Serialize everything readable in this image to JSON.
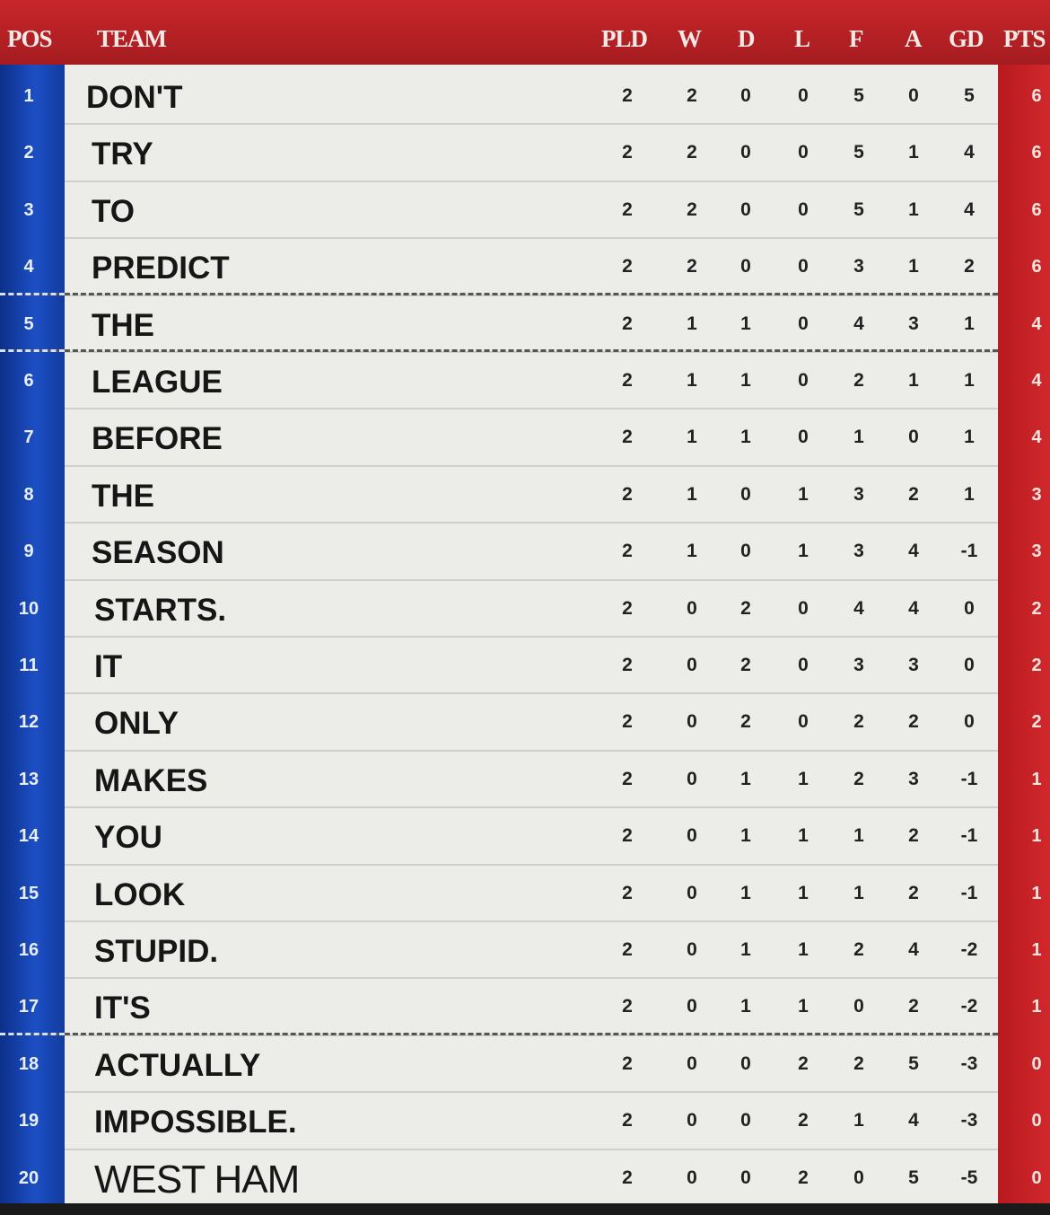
{
  "header": {
    "pos": "POS",
    "team": "TEAM",
    "pld": "PLD",
    "w": "W",
    "d": "D",
    "l": "L",
    "f": "F",
    "a": "A",
    "gd": "GD",
    "pts": "PTS"
  },
  "colors": {
    "header_red": "#c8262a",
    "pos_blue": "#1c4fc4",
    "pts_red": "#c8262a",
    "body": "#ecece8"
  },
  "rows": [
    {
      "pos": "1",
      "team": "DON'T",
      "pld": "2",
      "w": "2",
      "d": "0",
      "l": "0",
      "f": "5",
      "a": "0",
      "gd": "5",
      "pts": "6"
    },
    {
      "pos": "2",
      "team": "TRY",
      "pld": "2",
      "w": "2",
      "d": "0",
      "l": "0",
      "f": "5",
      "a": "1",
      "gd": "4",
      "pts": "6"
    },
    {
      "pos": "3",
      "team": "TO",
      "pld": "2",
      "w": "2",
      "d": "0",
      "l": "0",
      "f": "5",
      "a": "1",
      "gd": "4",
      "pts": "6"
    },
    {
      "pos": "4",
      "team": "PREDICT",
      "pld": "2",
      "w": "2",
      "d": "0",
      "l": "0",
      "f": "3",
      "a": "1",
      "gd": "2",
      "pts": "6"
    },
    {
      "pos": "5",
      "team": "THE",
      "pld": "2",
      "w": "1",
      "d": "1",
      "l": "0",
      "f": "4",
      "a": "3",
      "gd": "1",
      "pts": "4"
    },
    {
      "pos": "6",
      "team": "LEAGUE",
      "pld": "2",
      "w": "1",
      "d": "1",
      "l": "0",
      "f": "2",
      "a": "1",
      "gd": "1",
      "pts": "4"
    },
    {
      "pos": "7",
      "team": "BEFORE",
      "pld": "2",
      "w": "1",
      "d": "1",
      "l": "0",
      "f": "1",
      "a": "0",
      "gd": "1",
      "pts": "4"
    },
    {
      "pos": "8",
      "team": "THE",
      "pld": "2",
      "w": "1",
      "d": "0",
      "l": "1",
      "f": "3",
      "a": "2",
      "gd": "1",
      "pts": "3"
    },
    {
      "pos": "9",
      "team": "SEASON",
      "pld": "2",
      "w": "1",
      "d": "0",
      "l": "1",
      "f": "3",
      "a": "4",
      "gd": "-1",
      "pts": "3"
    },
    {
      "pos": "10",
      "team": "STARTS.",
      "pld": "2",
      "w": "0",
      "d": "2",
      "l": "0",
      "f": "4",
      "a": "4",
      "gd": "0",
      "pts": "2"
    },
    {
      "pos": "11",
      "team": "IT",
      "pld": "2",
      "w": "0",
      "d": "2",
      "l": "0",
      "f": "3",
      "a": "3",
      "gd": "0",
      "pts": "2"
    },
    {
      "pos": "12",
      "team": "ONLY",
      "pld": "2",
      "w": "0",
      "d": "2",
      "l": "0",
      "f": "2",
      "a": "2",
      "gd": "0",
      "pts": "2"
    },
    {
      "pos": "13",
      "team": "MAKES",
      "pld": "2",
      "w": "0",
      "d": "1",
      "l": "1",
      "f": "2",
      "a": "3",
      "gd": "-1",
      "pts": "1"
    },
    {
      "pos": "14",
      "team": "YOU",
      "pld": "2",
      "w": "0",
      "d": "1",
      "l": "1",
      "f": "1",
      "a": "2",
      "gd": "-1",
      "pts": "1"
    },
    {
      "pos": "15",
      "team": "LOOK",
      "pld": "2",
      "w": "0",
      "d": "1",
      "l": "1",
      "f": "1",
      "a": "2",
      "gd": "-1",
      "pts": "1"
    },
    {
      "pos": "16",
      "team": "STUPID.",
      "pld": "2",
      "w": "0",
      "d": "1",
      "l": "1",
      "f": "2",
      "a": "4",
      "gd": "-2",
      "pts": "1"
    },
    {
      "pos": "17",
      "team": "IT'S",
      "pld": "2",
      "w": "0",
      "d": "1",
      "l": "1",
      "f": "0",
      "a": "2",
      "gd": "-2",
      "pts": "1"
    },
    {
      "pos": "18",
      "team": "ACTUALLY",
      "pld": "2",
      "w": "0",
      "d": "0",
      "l": "2",
      "f": "2",
      "a": "5",
      "gd": "-3",
      "pts": "0"
    },
    {
      "pos": "19",
      "team": "IMPOSSIBLE.",
      "pld": "2",
      "w": "0",
      "d": "0",
      "l": "2",
      "f": "1",
      "a": "4",
      "gd": "-3",
      "pts": "0"
    },
    {
      "pos": "20",
      "team": "WEST HAM",
      "pld": "2",
      "w": "0",
      "d": "0",
      "l": "2",
      "f": "0",
      "a": "5",
      "gd": "-5",
      "pts": "0"
    }
  ]
}
